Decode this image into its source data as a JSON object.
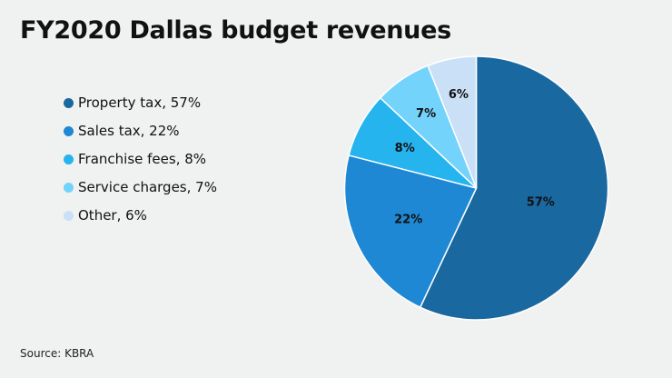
{
  "title": "FY2020 Dallas budget revenues",
  "source": "Source: KBRA",
  "legend": [
    {
      "label": "Property tax, 57%",
      "color": "#1a68a0"
    },
    {
      "label": "Sales tax, 22%",
      "color": "#1e88d4"
    },
    {
      "label": "Franchise fees, 8%",
      "color": "#26b4ef"
    },
    {
      "label": "Service charges, 7%",
      "color": "#74d3fb"
    },
    {
      "label": "Other, 6%",
      "color": "#c9e0f7"
    }
  ],
  "chart_data": {
    "type": "pie",
    "title": "FY2020 Dallas budget revenues",
    "start_angle": "12 o'clock",
    "direction": "clockwise",
    "legend_position": "left",
    "slices": [
      {
        "name": "Property tax",
        "value": 57,
        "label": "57%",
        "color": "#1a68a0"
      },
      {
        "name": "Sales tax",
        "value": 22,
        "label": "22%",
        "color": "#1e88d4"
      },
      {
        "name": "Franchise fees",
        "value": 8,
        "label": "8%",
        "color": "#26b4ef"
      },
      {
        "name": "Service charges",
        "value": 7,
        "label": "7%",
        "color": "#74d3fb"
      },
      {
        "name": "Other",
        "value": 6,
        "label": "6%",
        "color": "#c9e0f7"
      }
    ],
    "source": "KBRA"
  }
}
